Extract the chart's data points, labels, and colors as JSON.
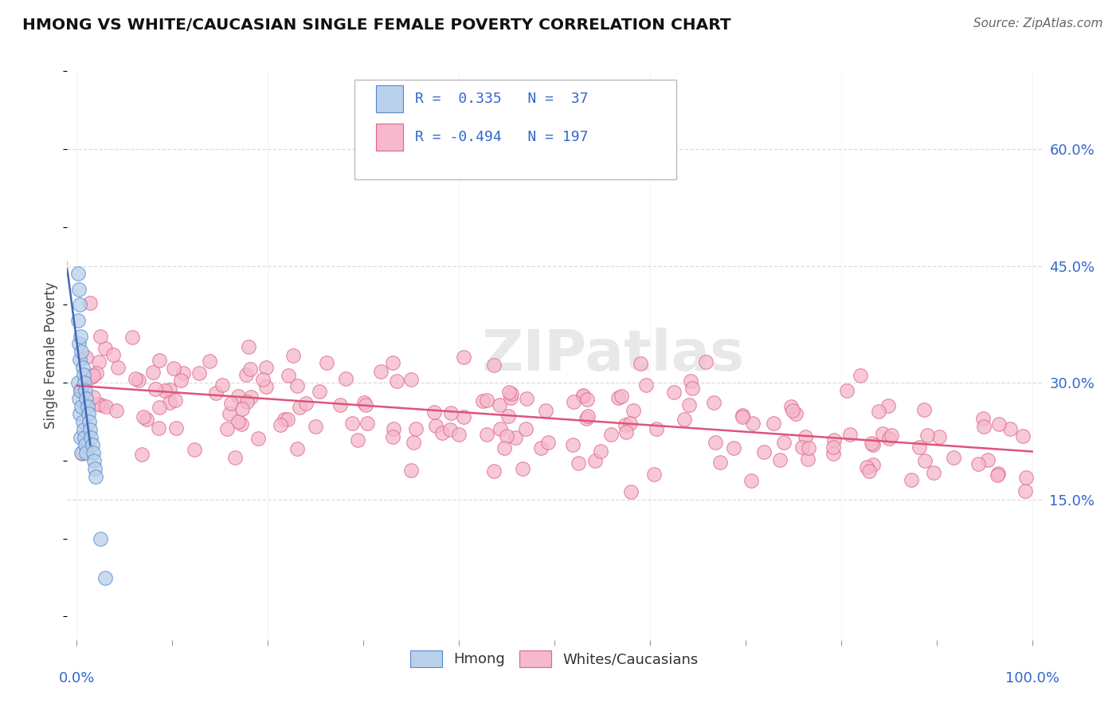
{
  "title": "HMONG VS WHITE/CAUCASIAN SINGLE FEMALE POVERTY CORRELATION CHART",
  "source": "Source: ZipAtlas.com",
  "ylabel": "Single Female Poverty",
  "watermark": "ZIPatlas",
  "background_color": "#ffffff",
  "hmong_R": 0.335,
  "hmong_N": 37,
  "white_R": -0.494,
  "white_N": 197,
  "hmong_color": "#b8d0ea",
  "white_color": "#f5b8cc",
  "hmong_edge_color": "#5588cc",
  "white_edge_color": "#dd6688",
  "hmong_line_color": "#4466bb",
  "white_line_color": "#dd5577",
  "xlim": [
    -0.01,
    1.01
  ],
  "ylim": [
    -0.03,
    0.7
  ],
  "ytick_positions": [
    0.15,
    0.3,
    0.45,
    0.6
  ],
  "ytick_labels": [
    "15.0%",
    "30.0%",
    "45.0%",
    "60.0%"
  ],
  "grid_color": "#dddddd",
  "title_color": "#111111",
  "source_color": "#666666",
  "tick_label_color": "#3366cc",
  "legend_text_color": "#3366cc"
}
